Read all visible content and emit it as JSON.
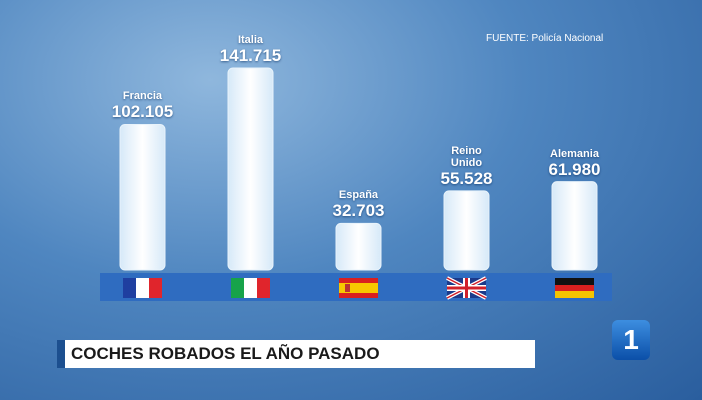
{
  "chart_data": {
    "type": "bar",
    "title": "COCHES ROBADOS EL AÑO PASADO",
    "source": "FUENTE: Policía Nacional",
    "categories": [
      "Francia",
      "Italia",
      "España",
      "Reino Unido",
      "Alemania"
    ],
    "values": [
      102105,
      141715,
      32703,
      55528,
      61980
    ],
    "value_labels": [
      "102.105",
      "141.715",
      "32.703",
      "55.528",
      "61.980"
    ],
    "color": "#e8f3fb"
  },
  "channel_logo": "1"
}
